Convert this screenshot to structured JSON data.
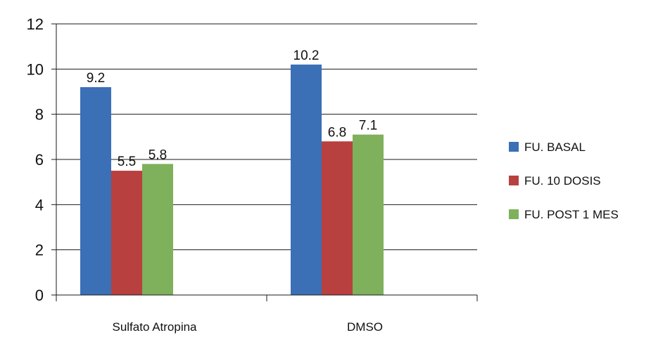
{
  "chart_data": {
    "type": "bar",
    "categories": [
      "Sulfato Atropina",
      "DMSO"
    ],
    "series": [
      {
        "name": "FU. BASAL",
        "values": [
          9.2,
          10.2
        ],
        "color": "#3B6FB6"
      },
      {
        "name": "FU. 10 DOSIS",
        "values": [
          5.5,
          6.8
        ],
        "color": "#B8403F"
      },
      {
        "name": "FU. POST 1 MES",
        "values": [
          5.8,
          7.1
        ],
        "color": "#7FB05C"
      }
    ],
    "ylim": [
      0,
      12
    ],
    "yticks": [
      0,
      2,
      4,
      6,
      8,
      10,
      12
    ],
    "grid": true,
    "legend": "right",
    "data_labels": true
  }
}
